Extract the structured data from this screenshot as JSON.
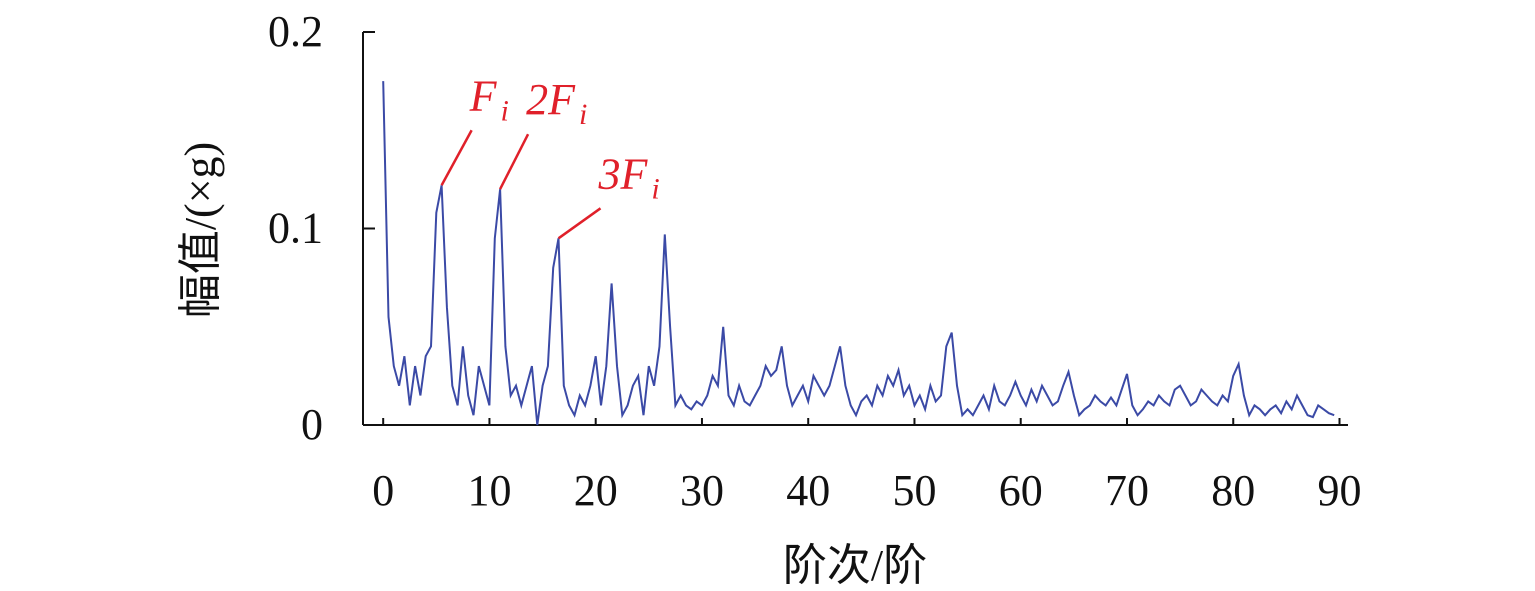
{
  "chart_data": {
    "type": "line",
    "xlabel": "阶次/阶",
    "ylabel": "幅值/(×g)",
    "color": "#3b4aa6",
    "x": [
      0,
      0.5,
      1,
      1.5,
      2,
      2.5,
      3,
      3.5,
      4,
      4.5,
      5,
      5.5,
      6,
      6.5,
      7,
      7.5,
      8,
      8.5,
      9,
      9.5,
      10,
      10.5,
      11,
      11.5,
      12,
      12.5,
      13,
      13.5,
      14,
      14.5,
      15,
      15.5,
      16,
      16.5,
      17,
      17.5,
      18,
      18.5,
      19,
      19.5,
      20,
      20.5,
      21,
      21.5,
      22,
      22.5,
      23,
      23.5,
      24,
      24.5,
      25,
      25.5,
      26,
      26.5,
      27,
      27.5,
      28,
      28.5,
      29,
      29.5,
      30,
      30.5,
      31,
      31.5,
      32,
      32.5,
      33,
      33.5,
      34,
      34.5,
      35,
      35.5,
      36,
      36.5,
      37,
      37.5,
      38,
      38.5,
      39,
      39.5,
      40,
      40.5,
      41,
      41.5,
      42,
      42.5,
      43,
      43.5,
      44,
      44.5,
      45,
      45.5,
      46,
      46.5,
      47,
      47.5,
      48,
      48.5,
      49,
      49.5,
      50,
      50.5,
      51,
      51.5,
      52,
      52.5,
      53,
      53.5,
      54,
      54.5,
      55,
      55.5,
      56,
      56.5,
      57,
      57.5,
      58,
      58.5,
      59,
      59.5,
      60,
      60.5,
      61,
      61.5,
      62,
      62.5,
      63,
      63.5,
      64,
      64.5,
      65,
      65.5,
      66,
      66.5,
      67,
      67.5,
      68,
      68.5,
      69,
      69.5,
      70,
      70.5,
      71,
      71.5,
      72,
      72.5,
      73,
      73.5,
      74,
      74.5,
      75,
      75.5,
      76,
      76.5,
      77,
      77.5,
      78,
      78.5,
      79,
      79.5,
      80,
      80.5,
      81,
      81.5,
      82,
      82.5,
      83,
      83.5,
      84,
      84.5,
      85,
      85.5,
      86,
      86.5,
      87,
      87.5,
      88,
      88.5,
      89,
      89.5
    ],
    "values": [
      0.175,
      0.055,
      0.03,
      0.02,
      0.035,
      0.01,
      0.03,
      0.015,
      0.035,
      0.04,
      0.108,
      0.122,
      0.06,
      0.02,
      0.01,
      0.04,
      0.015,
      0.005,
      0.03,
      0.02,
      0.01,
      0.095,
      0.12,
      0.04,
      0.015,
      0.02,
      0.01,
      0.02,
      0.03,
      0.0,
      0.02,
      0.03,
      0.08,
      0.095,
      0.02,
      0.01,
      0.005,
      0.015,
      0.01,
      0.02,
      0.035,
      0.01,
      0.03,
      0.072,
      0.03,
      0.005,
      0.01,
      0.02,
      0.025,
      0.005,
      0.03,
      0.02,
      0.04,
      0.097,
      0.05,
      0.01,
      0.015,
      0.01,
      0.008,
      0.012,
      0.01,
      0.015,
      0.025,
      0.02,
      0.05,
      0.015,
      0.01,
      0.02,
      0.012,
      0.01,
      0.015,
      0.02,
      0.03,
      0.025,
      0.028,
      0.04,
      0.02,
      0.01,
      0.015,
      0.02,
      0.012,
      0.025,
      0.02,
      0.015,
      0.02,
      0.03,
      0.04,
      0.02,
      0.01,
      0.005,
      0.012,
      0.015,
      0.01,
      0.02,
      0.015,
      0.025,
      0.02,
      0.028,
      0.015,
      0.02,
      0.01,
      0.015,
      0.008,
      0.02,
      0.012,
      0.015,
      0.04,
      0.047,
      0.02,
      0.005,
      0.008,
      0.005,
      0.01,
      0.015,
      0.008,
      0.02,
      0.012,
      0.01,
      0.015,
      0.022,
      0.015,
      0.01,
      0.018,
      0.012,
      0.02,
      0.015,
      0.01,
      0.012,
      0.02,
      0.027,
      0.015,
      0.005,
      0.008,
      0.01,
      0.015,
      0.012,
      0.01,
      0.014,
      0.01,
      0.018,
      0.026,
      0.01,
      0.005,
      0.008,
      0.012,
      0.01,
      0.015,
      0.012,
      0.01,
      0.018,
      0.02,
      0.015,
      0.01,
      0.012,
      0.018,
      0.015,
      0.012,
      0.01,
      0.015,
      0.012,
      0.025,
      0.031,
      0.015,
      0.005,
      0.01,
      0.008,
      0.005,
      0.008,
      0.01,
      0.006,
      0.012,
      0.008,
      0.015,
      0.01,
      0.005,
      0.004,
      0.01,
      0.008,
      0.006,
      0.005
    ],
    "xlim": [
      -1.9,
      90.8
    ],
    "xticks": [
      0,
      10,
      20,
      30,
      40,
      50,
      60,
      70,
      80,
      90
    ],
    "ylim": [
      0,
      0.2
    ],
    "yticks": [
      0,
      0.1,
      0.2
    ],
    "annotations": [
      {
        "text": "F",
        "subscript": "i",
        "x": 5.5,
        "y": 0.122
      },
      {
        "text": "2F",
        "subscript": "i",
        "x": 11,
        "y": 0.12
      },
      {
        "text": "3F",
        "subscript": "i",
        "x": 16.5,
        "y": 0.095
      }
    ]
  }
}
